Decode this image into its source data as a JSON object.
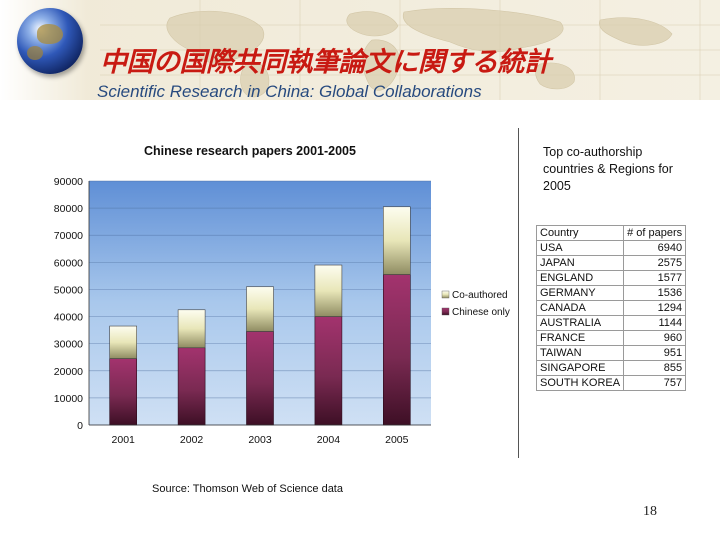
{
  "slide": {
    "title_ja": "中国の国際共同執筆論文に関する統計",
    "title_en": "Scientific Research in China: Global Collaborations",
    "source": "Source: Thomson Web of Science data",
    "page_number": "18"
  },
  "colors": {
    "title_ja": "#c81a12",
    "title_en": "#274a7f",
    "co_authored": "#e8e6b8",
    "chinese_only": "#7a2a52",
    "plot_bg": "#a9c8ec"
  },
  "table": {
    "title": "Top co-authorship countries & Regions for 2005",
    "columns": [
      "Country",
      "# of papers"
    ],
    "rows": [
      [
        "USA",
        "6940"
      ],
      [
        "JAPAN",
        "2575"
      ],
      [
        "ENGLAND",
        "1577"
      ],
      [
        "GERMANY",
        "1536"
      ],
      [
        "CANADA",
        "1294"
      ],
      [
        "AUSTRALIA",
        "1144"
      ],
      [
        "FRANCE",
        "960"
      ],
      [
        "TAIWAN",
        "951"
      ],
      [
        "SINGAPORE",
        "855"
      ],
      [
        "SOUTH KOREA",
        "757"
      ]
    ]
  },
  "chart_data": {
    "type": "bar",
    "stacked": true,
    "title": "Chinese research papers 2001-2005",
    "categories": [
      "2001",
      "2002",
      "2003",
      "2004",
      "2005"
    ],
    "series": [
      {
        "name": "Chinese only",
        "values": [
          24500,
          28500,
          34500,
          40000,
          55500
        ]
      },
      {
        "name": "Co-authored",
        "values": [
          12000,
          14000,
          16500,
          19000,
          25000
        ]
      }
    ],
    "ylim": [
      0,
      90000
    ],
    "yticks": [
      "0",
      "10000",
      "20000",
      "30000",
      "40000",
      "50000",
      "60000",
      "70000",
      "80000",
      "90000"
    ],
    "legend": [
      "Co-authored",
      "Chinese only"
    ],
    "legend_position": "right",
    "grid": true
  }
}
